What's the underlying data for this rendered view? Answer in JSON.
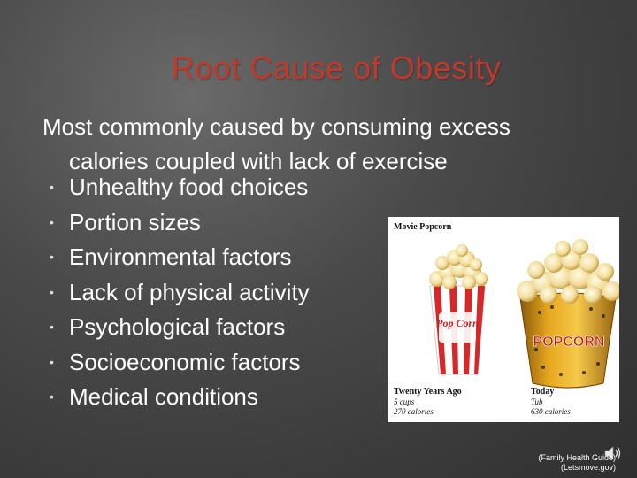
{
  "slide": {
    "title": "Root Cause of Obesity",
    "intro_line1": "Most commonly caused by consuming excess",
    "intro_line2": "calories coupled with lack of exercise",
    "bullets": [
      "Unhealthy food choices",
      "Portion sizes",
      "Environmental factors",
      "Lack of physical activity",
      "Psychological factors",
      "Socioeconomic factors",
      "Medical conditions"
    ],
    "bullet_glyph": "•",
    "image": {
      "heading": "Movie Popcorn",
      "then_label": "Twenty Years Ago",
      "then_cups": "5 cups",
      "then_calories": "270 calories",
      "now_label": "Today",
      "now_cups": "Tub",
      "now_calories": "630 calories",
      "small_box_text": "Pop Corn",
      "big_tub_text": "POPCORN"
    },
    "citation_line1": "(Family Health Guide)",
    "citation_line2": "(Letsmove.gov)",
    "icons": {
      "speaker": "speaker-icon"
    },
    "colors": {
      "title": "#c0392b",
      "text": "#ffffff",
      "background_dark": "#2f2f2f",
      "background_light": "#6a6a6a"
    }
  }
}
